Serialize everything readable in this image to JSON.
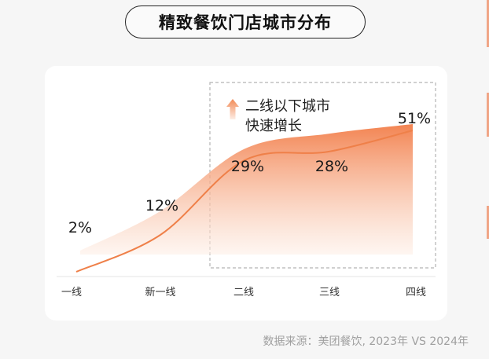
{
  "title": "精致餐饮门店城市分布",
  "source": "数据来源：美团餐饮, 2023年 VS 2024年",
  "colors": {
    "line": "#ef8049",
    "area_top": "#f27d48",
    "area_bottom": "#fdeee5",
    "box_border": "#b5b5b5",
    "arrow": "#f28a55"
  },
  "annotation": {
    "icon": "up-arrow-icon",
    "line1": "二线以下城市",
    "line2": "快速增长"
  },
  "chart_data": {
    "type": "area",
    "categories": [
      "一线",
      "新一线",
      "二线",
      "三线",
      "四线"
    ],
    "values": [
      2,
      12,
      29,
      28,
      51
    ],
    "labels": [
      "2%",
      "12%",
      "29%",
      "28%",
      "51%"
    ],
    "unit": "%",
    "ylim": [
      0,
      55
    ],
    "grid": false,
    "legend": "none",
    "highlight_range": [
      "二线",
      "四线"
    ]
  }
}
